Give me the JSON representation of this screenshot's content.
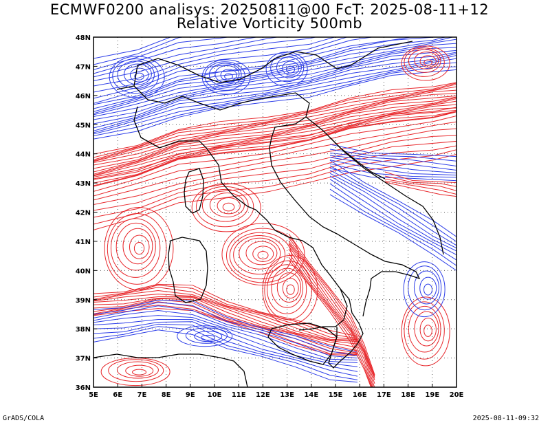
{
  "title_line1": "ECMWF0200 analisys: 20250811@00 FcT: 2025-08-11+12",
  "title_line2": "Relative Vorticity 500mb",
  "footer_left": "GrADS/COLA",
  "footer_right": "2025-08-11-09:32",
  "map": {
    "lon_range": [
      5,
      20
    ],
    "lat_range": [
      36,
      48
    ],
    "lon_labels": [
      "5E",
      "6E",
      "7E",
      "8E",
      "9E",
      "10E",
      "11E",
      "12E",
      "13E",
      "14E",
      "15E",
      "16E",
      "17E",
      "18E",
      "19E",
      "20E"
    ],
    "lat_labels": [
      "36N",
      "37N",
      "38N",
      "39N",
      "40N",
      "41N",
      "42N",
      "43N",
      "44N",
      "45N",
      "46N",
      "47N",
      "48N"
    ],
    "colors": {
      "positive_contours": "#e8262a",
      "negative_contours": "#2b3ce8",
      "coastline": "#000000",
      "grid": "#555555"
    }
  }
}
